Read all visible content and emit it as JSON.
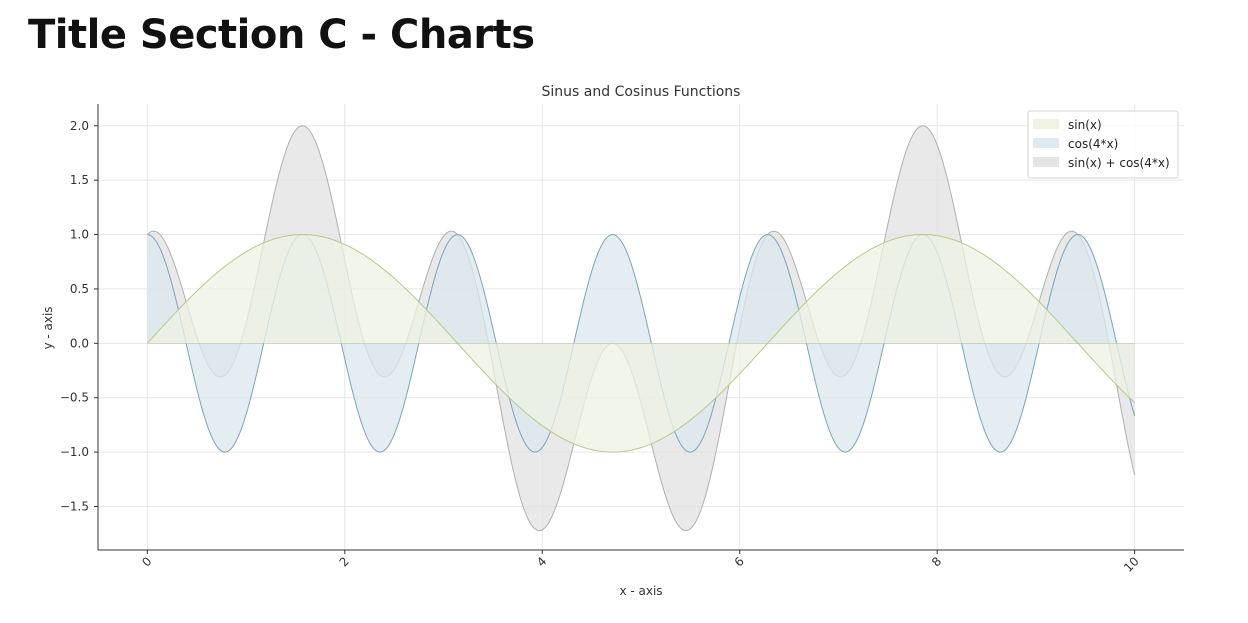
{
  "page": {
    "title": "Title Section C - Charts"
  },
  "colors": {
    "sin": "#b7c98a",
    "sin_fill": "#eef1e1",
    "cos": "#7aa3bf",
    "cos_fill": "#dbe8ee",
    "sum": "#b0b0b0",
    "sum_fill": "#e1e1e1",
    "grid": "#e6e6e6",
    "axis": "#333333",
    "text": "#333333"
  },
  "chart_data": {
    "type": "area",
    "title": "Sinus and Cosinus Functions",
    "xlabel": "x - axis",
    "ylabel": "y - axis",
    "xlim": [
      -0.5,
      10.5
    ],
    "ylim": [
      -1.9,
      2.2
    ],
    "x_range": [
      0,
      10
    ],
    "x_ticks": [
      0,
      2,
      4,
      6,
      8,
      10
    ],
    "x_tick_labels": [
      "0",
      "2",
      "4",
      "6",
      "8",
      "10"
    ],
    "y_ticks": [
      -1.5,
      -1.0,
      -0.5,
      0.0,
      0.5,
      1.0,
      1.5,
      2.0
    ],
    "y_tick_labels": [
      "−1.5",
      "−1.0",
      "−0.5",
      "0.0",
      "0.5",
      "1.0",
      "1.5",
      "2.0"
    ],
    "grid": true,
    "legend_position": "top-right",
    "series": [
      {
        "name": "sin(x)",
        "function": "sin(x)",
        "color_key": "sin"
      },
      {
        "name": "cos(4*x)",
        "function": "cos(4*x)",
        "color_key": "cos"
      },
      {
        "name": "sin(x) + cos(4*x)",
        "function": "sin(x) + cos(4*x)",
        "color_key": "sum"
      }
    ]
  }
}
